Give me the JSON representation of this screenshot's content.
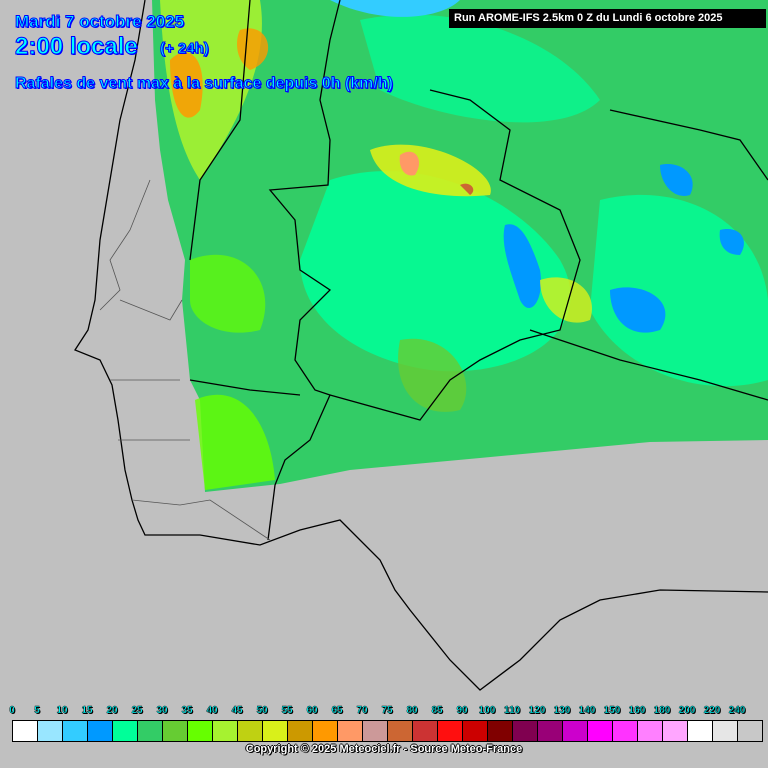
{
  "header": {
    "date": "Mardi 7 octobre 2025",
    "time": "2:00 locale",
    "lead": "(+ 24h)",
    "parameter": "Rafales de vent max à la surface depuis 0h (km/h)",
    "run": "Run AROME-IFS 2.5km 0 Z du Lundi 6 octobre 2025"
  },
  "legend": {
    "labels": [
      "0",
      "5",
      "10",
      "15",
      "20",
      "25",
      "30",
      "35",
      "40",
      "45",
      "50",
      "55",
      "60",
      "65",
      "70",
      "75",
      "80",
      "85",
      "90",
      "100",
      "110",
      "120",
      "130",
      "140",
      "150",
      "160",
      "180",
      "200",
      "220",
      "240"
    ],
    "colors": [
      "#ffffff",
      "#99e6ff",
      "#33ccff",
      "#0099ff",
      "#00ff99",
      "#33cc66",
      "#66cc33",
      "#66ff00",
      "#a6f230",
      "#bfd112",
      "#d9f01a",
      "#cc9900",
      "#ff9900",
      "#ff9966",
      "#cc9999",
      "#cc6633",
      "#cc3333",
      "#ff0f0f",
      "#cc0000",
      "#800000",
      "#800050",
      "#990077",
      "#cc00cc",
      "#ff00ff",
      "#ff33ff",
      "#ff80ff",
      "#ffa6ff",
      "#ffffff",
      "#e6e6e6",
      "#c8c8c8"
    ]
  },
  "copyright": "Copyright © 2025 Meteociel.fr - Source Meteo-France"
}
